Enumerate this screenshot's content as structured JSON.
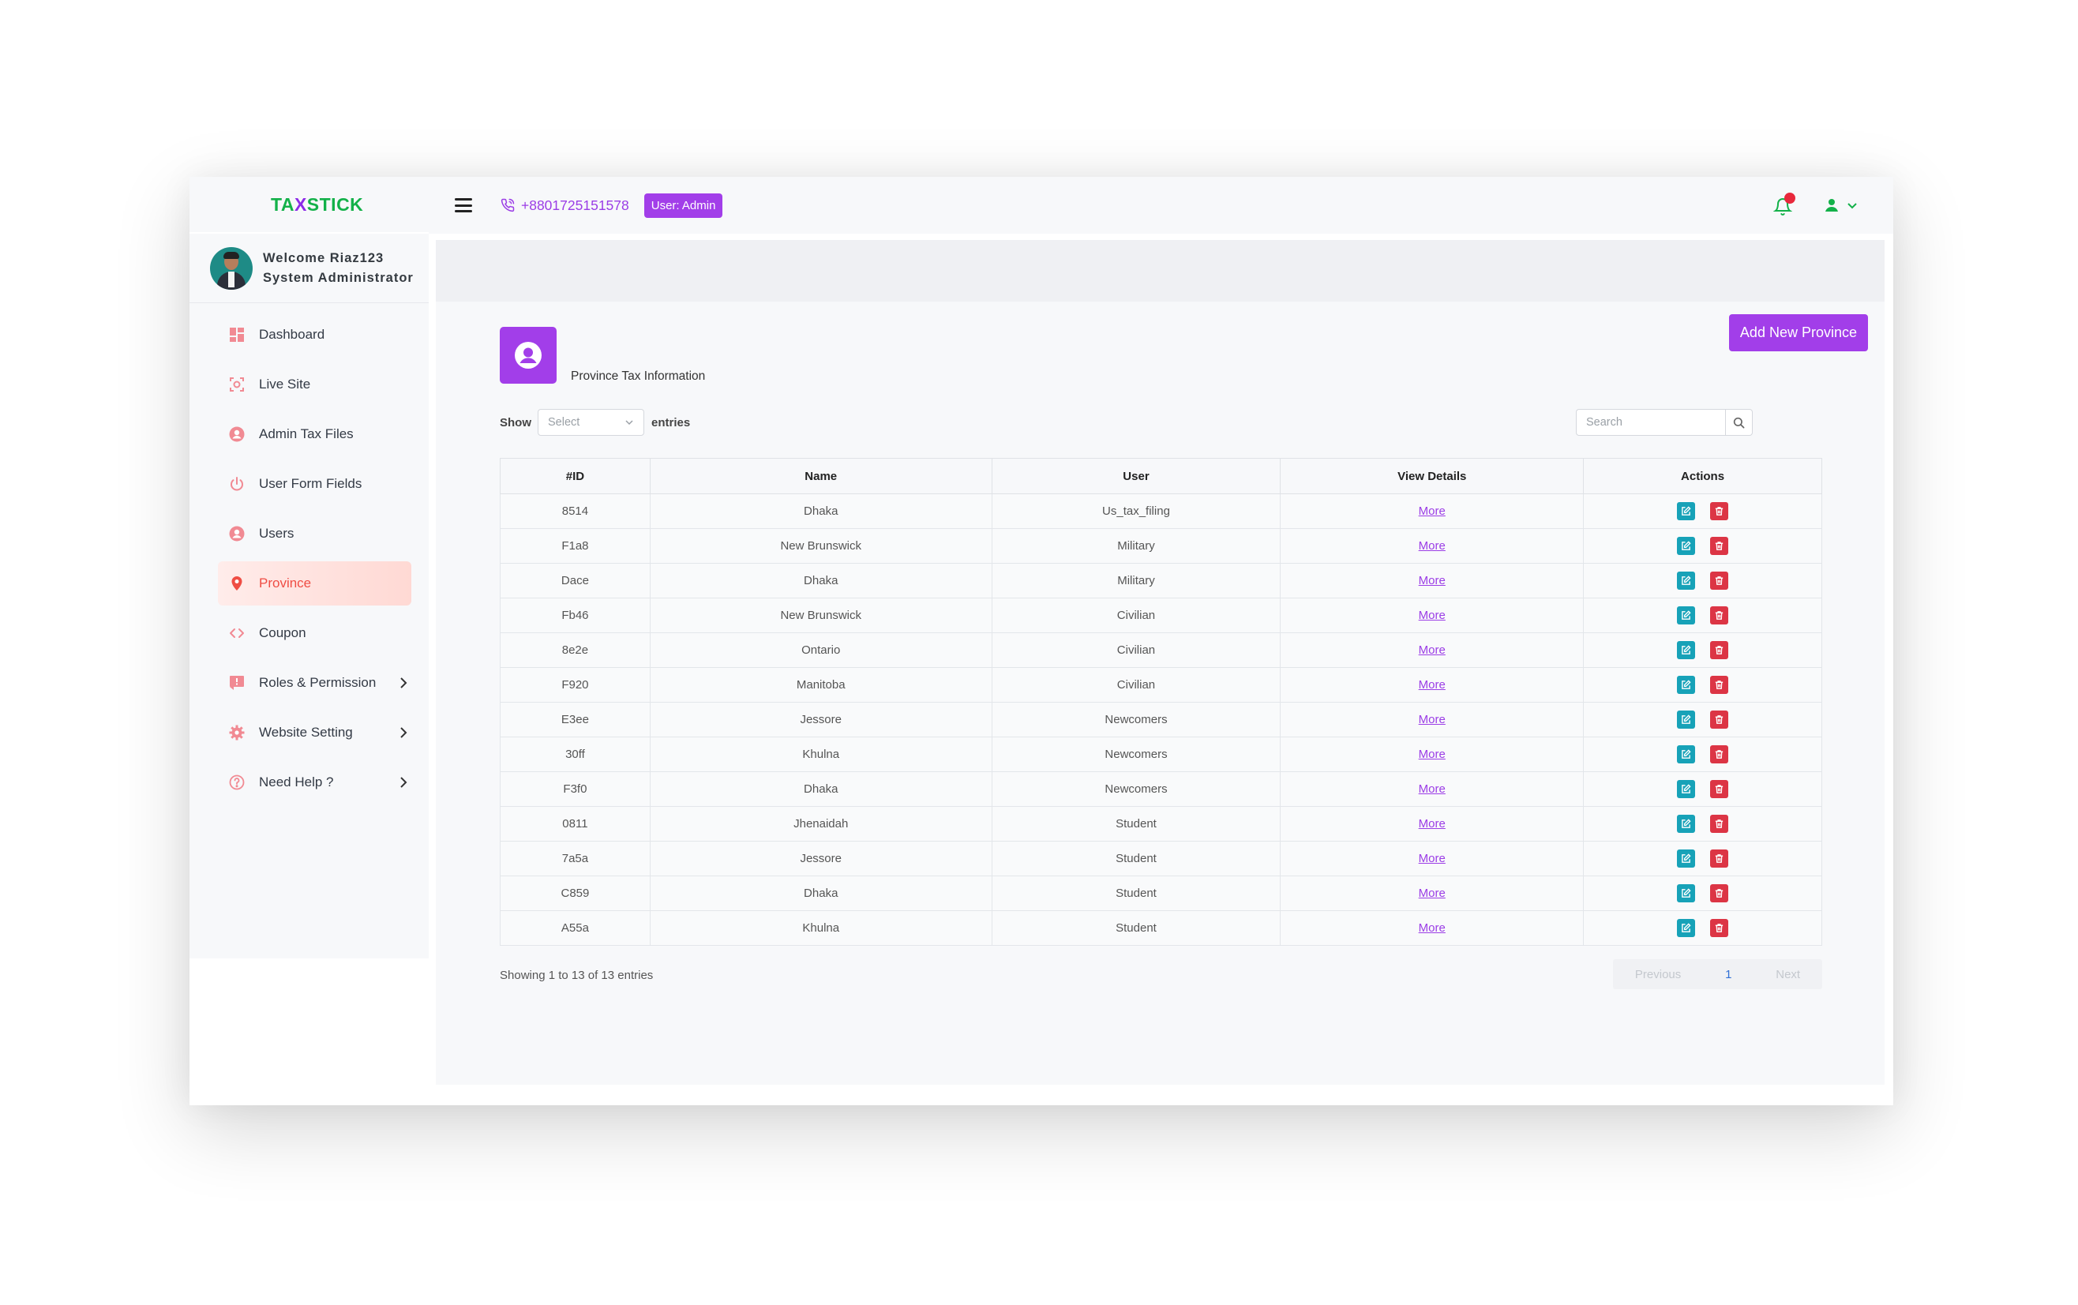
{
  "brand": {
    "before": "TA",
    "x": "X",
    "after": "STICK",
    "primary_color": "#13b149",
    "accent_color": "#8c2be8"
  },
  "profile": {
    "welcome": "Welcome Riaz123",
    "role": "System Administrator"
  },
  "sidebar": {
    "items": [
      {
        "label": "Dashboard",
        "icon": "dashboard-icon"
      },
      {
        "label": "Live Site",
        "icon": "live-site-icon"
      },
      {
        "label": "Admin Tax Files",
        "icon": "user-circle-icon"
      },
      {
        "label": "User Form Fields",
        "icon": "power-icon"
      },
      {
        "label": "Users",
        "icon": "user-circle-icon"
      },
      {
        "label": "Province",
        "icon": "map-pin-icon",
        "active": true
      },
      {
        "label": "Coupon",
        "icon": "code-icon"
      },
      {
        "label": "Roles & Permission",
        "icon": "flag-icon",
        "has_submenu": true
      },
      {
        "label": "Website Setting",
        "icon": "gear-icon",
        "has_submenu": true
      },
      {
        "label": "Need Help ?",
        "icon": "question-icon",
        "has_submenu": true
      }
    ]
  },
  "topbar": {
    "phone": "+8801725151578",
    "role_badge": "User: Admin",
    "badge_color": "#a23ee9"
  },
  "page": {
    "title": "Province Tax Information",
    "add_button": "Add New Province",
    "show_label": "Show",
    "select_placeholder": "Select",
    "entries_label": "entries",
    "search_placeholder": "Search"
  },
  "table": {
    "headers": [
      "#ID",
      "Name",
      "User",
      "View Details",
      "Actions"
    ],
    "rows": [
      {
        "id": "8514",
        "name": "Dhaka",
        "user": "Us_tax_filing",
        "details": "More"
      },
      {
        "id": "F1a8",
        "name": "New Brunswick",
        "user": "Military",
        "details": "More"
      },
      {
        "id": "Dace",
        "name": "Dhaka",
        "user": "Military",
        "details": "More"
      },
      {
        "id": "Fb46",
        "name": "New Brunswick",
        "user": "Civilian",
        "details": "More"
      },
      {
        "id": "8e2e",
        "name": "Ontario",
        "user": "Civilian",
        "details": "More"
      },
      {
        "id": "F920",
        "name": "Manitoba",
        "user": "Civilian",
        "details": "More"
      },
      {
        "id": "E3ee",
        "name": "Jessore",
        "user": "Newcomers",
        "details": "More"
      },
      {
        "id": "30ff",
        "name": "Khulna",
        "user": "Newcomers",
        "details": "More"
      },
      {
        "id": "F3f0",
        "name": "Dhaka",
        "user": "Newcomers",
        "details": "More"
      },
      {
        "id": "0811",
        "name": "Jhenaidah",
        "user": "Student",
        "details": "More"
      },
      {
        "id": "7a5a",
        "name": "Jessore",
        "user": "Student",
        "details": "More"
      },
      {
        "id": "C859",
        "name": "Dhaka",
        "user": "Student",
        "details": "More"
      },
      {
        "id": "A55a",
        "name": "Khulna",
        "user": "Student",
        "details": "More"
      }
    ]
  },
  "footer": {
    "info": "Showing 1 to 13 of 13 entries",
    "prev": "Previous",
    "current": "1",
    "next": "Next"
  }
}
